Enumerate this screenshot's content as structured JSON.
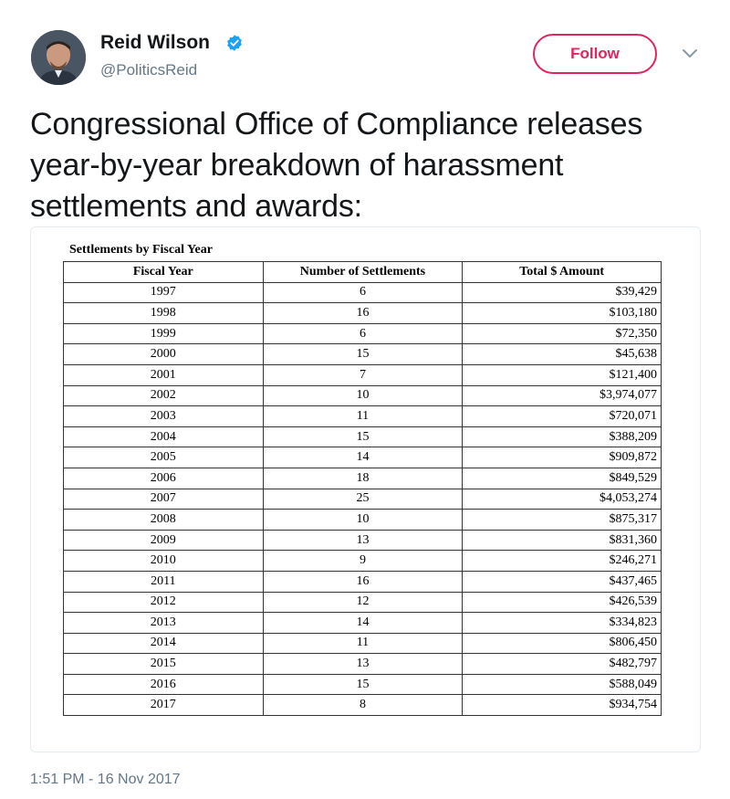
{
  "author": {
    "name": "Reid Wilson",
    "handle": "@PoliticsReid"
  },
  "follow_label": "Follow",
  "tweet_text": "Congressional Office of Compliance releases year-by-year breakdown of harassment settlements and awards:",
  "document": {
    "title": "Settlements by Fiscal Year",
    "headers": [
      "Fiscal Year",
      "Number of Settlements",
      "Total $ Amount"
    ],
    "rows": [
      [
        "1997",
        "6",
        "$39,429"
      ],
      [
        "1998",
        "16",
        "$103,180"
      ],
      [
        "1999",
        "6",
        "$72,350"
      ],
      [
        "2000",
        "15",
        "$45,638"
      ],
      [
        "2001",
        "7",
        "$121,400"
      ],
      [
        "2002",
        "10",
        "$3,974,077"
      ],
      [
        "2003",
        "11",
        "$720,071"
      ],
      [
        "2004",
        "15",
        "$388,209"
      ],
      [
        "2005",
        "14",
        "$909,872"
      ],
      [
        "2006",
        "18",
        "$849,529"
      ],
      [
        "2007",
        "25",
        "$4,053,274"
      ],
      [
        "2008",
        "10",
        "$875,317"
      ],
      [
        "2009",
        "13",
        "$831,360"
      ],
      [
        "2010",
        "9",
        "$246,271"
      ],
      [
        "2011",
        "16",
        "$437,465"
      ],
      [
        "2012",
        "12",
        "$426,539"
      ],
      [
        "2013",
        "14",
        "$334,823"
      ],
      [
        "2014",
        "11",
        "$806,450"
      ],
      [
        "2015",
        "13",
        "$482,797"
      ],
      [
        "2016",
        "15",
        "$588,049"
      ],
      [
        "2017",
        "8",
        "$934,754"
      ]
    ]
  },
  "timestamp": "1:51 PM - 16 Nov 2017",
  "icons": {
    "verified": "verified-badge-icon",
    "menu": "chevron-down-icon",
    "avatar": "avatar"
  },
  "colors": {
    "follow_accent": "#e0245e",
    "verified_blue": "#1da1f2",
    "secondary_text": "#657786"
  }
}
